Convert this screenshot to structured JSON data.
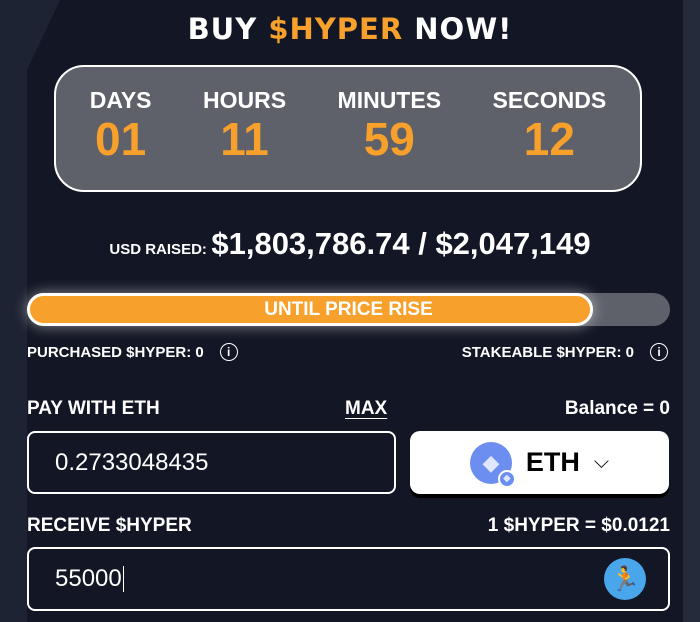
{
  "title": {
    "pre": "BUY ",
    "accent": "$HYPER",
    "post": " NOW!"
  },
  "countdown": [
    {
      "label": "DAYS",
      "value": "01"
    },
    {
      "label": "HOURS",
      "value": "11"
    },
    {
      "label": "MINUTES",
      "value": "59"
    },
    {
      "label": "SECONDS",
      "value": "12"
    }
  ],
  "raised": {
    "label": "USD RAISED:",
    "value": "$1,803,786.74 / $2,047,149"
  },
  "progress": {
    "label": "UNTIL PRICE RISE",
    "percent": 88.1
  },
  "purchased": "PURCHASED $HYPER: 0",
  "stakeable": "STAKEABLE $HYPER: 0",
  "pay": {
    "label": "PAY WITH ETH",
    "max": "MAX",
    "balance": "Balance = 0",
    "value": "0.2733048435",
    "token": "ETH",
    "token_icon": "ethereum-icon"
  },
  "receive": {
    "label": "RECEIVE $HYPER",
    "rate": "1 $HYPER = $0.0121",
    "value": "55000",
    "token_icon": "hyper-mascot-icon"
  },
  "colors": {
    "accent": "#f7a02b",
    "background": "#131725"
  }
}
